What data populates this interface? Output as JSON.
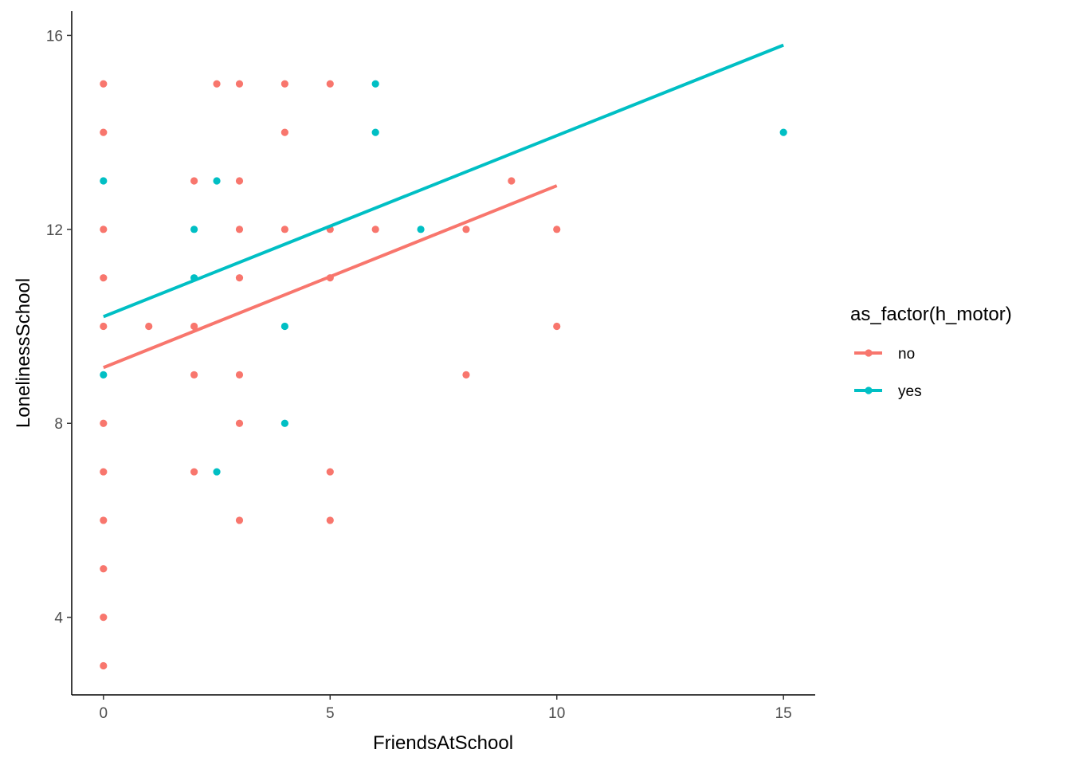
{
  "chart_data": {
    "type": "scatter",
    "xlabel": "FriendsAtSchool",
    "ylabel": "LonelinessSchool",
    "xlim": [
      -0.7,
      15.7
    ],
    "ylim": [
      2.4,
      16.5
    ],
    "x_ticks": [
      0,
      5,
      10,
      15
    ],
    "y_ticks": [
      4,
      8,
      12,
      16
    ],
    "grid": false,
    "legend": {
      "title": "as_factor(h_motor)",
      "placement": "right"
    },
    "series": [
      {
        "name": "no",
        "color": "#F8766D",
        "points": [
          [
            0,
            15
          ],
          [
            0,
            14
          ],
          [
            0,
            12
          ],
          [
            0,
            11
          ],
          [
            0,
            10
          ],
          [
            0,
            8
          ],
          [
            0,
            7
          ],
          [
            0,
            6
          ],
          [
            0,
            5
          ],
          [
            0,
            4
          ],
          [
            0,
            3
          ],
          [
            1,
            10
          ],
          [
            2,
            13
          ],
          [
            2,
            10
          ],
          [
            2,
            9
          ],
          [
            2,
            7
          ],
          [
            2.5,
            15
          ],
          [
            3,
            15
          ],
          [
            3,
            13
          ],
          [
            3,
            12
          ],
          [
            3,
            11
          ],
          [
            3,
            9
          ],
          [
            3,
            8
          ],
          [
            3,
            6
          ],
          [
            4,
            15
          ],
          [
            4,
            14
          ],
          [
            4,
            12
          ],
          [
            5,
            15
          ],
          [
            5,
            12
          ],
          [
            5,
            11
          ],
          [
            5,
            7
          ],
          [
            5,
            6
          ],
          [
            6,
            12
          ],
          [
            8,
            12
          ],
          [
            8,
            9
          ],
          [
            9,
            13
          ],
          [
            10,
            12
          ],
          [
            10,
            10
          ]
        ],
        "fit_line": [
          [
            0,
            9.15
          ],
          [
            10,
            12.9
          ]
        ]
      },
      {
        "name": "yes",
        "color": "#00BFC4",
        "points": [
          [
            0,
            13
          ],
          [
            0,
            9
          ],
          [
            2,
            12
          ],
          [
            2,
            11
          ],
          [
            2.5,
            13
          ],
          [
            2.5,
            7
          ],
          [
            4,
            10
          ],
          [
            4,
            8
          ],
          [
            6,
            15
          ],
          [
            6,
            14
          ],
          [
            7,
            12
          ],
          [
            15,
            14
          ]
        ],
        "fit_line": [
          [
            0,
            10.2
          ],
          [
            15,
            15.8
          ]
        ]
      }
    ]
  }
}
